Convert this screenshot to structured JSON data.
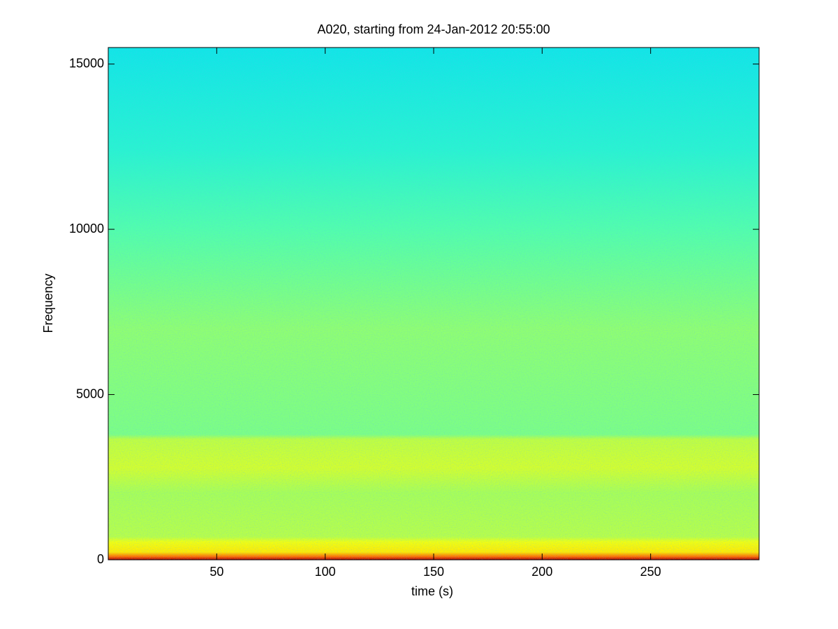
{
  "chart_data": {
    "type": "spectrogram",
    "title": "A020, starting from 24-Jan-2012 20:55:00",
    "xlabel": "time (s)",
    "ylabel": "Frequency",
    "xlim": [
      0,
      300
    ],
    "xticks": [
      50,
      100,
      150,
      200,
      250
    ],
    "ylim": [
      0,
      15500
    ],
    "yticks": [
      0,
      5000,
      10000,
      15000
    ],
    "colormap": "jet"
  }
}
